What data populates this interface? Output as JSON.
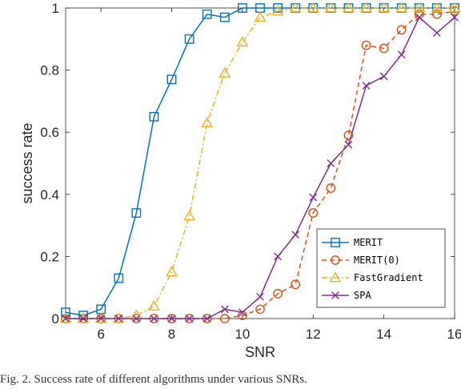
{
  "chart_data": {
    "type": "line",
    "title": "",
    "xlabel": "SNR",
    "ylabel": "success rate",
    "xlim": [
      5,
      16
    ],
    "ylim": [
      0,
      1
    ],
    "xticks": [
      6,
      8,
      10,
      12,
      14,
      16
    ],
    "yticks": [
      0,
      0.2,
      0.4,
      0.6,
      0.8,
      1
    ],
    "grid": false,
    "legend_position": "bottom-right",
    "x": [
      5,
      5.5,
      6,
      6.5,
      7,
      7.5,
      8,
      8.5,
      9,
      9.5,
      10,
      10.5,
      11,
      11.5,
      12,
      12.5,
      13,
      13.5,
      14,
      14.5,
      15,
      15.5,
      16
    ],
    "series": [
      {
        "name": "MERIT",
        "color": "#0072BD",
        "marker": "square",
        "dash": "solid",
        "values": [
          0.02,
          0.01,
          0.03,
          0.13,
          0.34,
          0.65,
          0.77,
          0.9,
          0.98,
          0.97,
          1,
          1,
          1,
          1,
          1,
          1,
          1,
          1,
          1,
          1,
          1,
          1,
          1
        ]
      },
      {
        "name": "MERIT(0)",
        "color": "#D95319",
        "marker": "circle",
        "dash": "dashed",
        "values": [
          0,
          0,
          0,
          0,
          0,
          0,
          0,
          0,
          0,
          0,
          0.01,
          0.03,
          0.08,
          0.11,
          0.34,
          0.42,
          0.59,
          0.88,
          0.87,
          0.93,
          0.98,
          0.98,
          0.99
        ]
      },
      {
        "name": "FastGradient",
        "color": "#EDB120",
        "marker": "triangle",
        "dash": "dashdot",
        "values": [
          0,
          0,
          0,
          0,
          0.01,
          0.04,
          0.15,
          0.33,
          0.63,
          0.79,
          0.89,
          0.97,
          0.99,
          1,
          1,
          1,
          1,
          1,
          1,
          1,
          1,
          1,
          1
        ]
      },
      {
        "name": "SPA",
        "color": "#7E2F8E",
        "marker": "x",
        "dash": "solid",
        "values": [
          0,
          0,
          0,
          0,
          0,
          0,
          0,
          0,
          0,
          0.03,
          0.02,
          0.07,
          0.2,
          0.27,
          0.39,
          0.5,
          0.56,
          0.75,
          0.78,
          0.85,
          0.97,
          0.92,
          0.97
        ]
      }
    ]
  },
  "caption": "Fig. 2.  Success rate of different algorithms under various SNRs."
}
